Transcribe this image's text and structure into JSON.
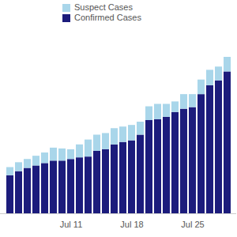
{
  "chart_data": {
    "type": "bar",
    "stacked": true,
    "legend": "top-left",
    "tick_labels": "x",
    "categories": [
      null,
      null,
      null,
      null,
      null,
      null,
      null,
      "Jul 11",
      null,
      null,
      null,
      null,
      null,
      null,
      "Jul 18",
      null,
      null,
      null,
      null,
      null,
      null,
      "Jul 25",
      null,
      null,
      null,
      null
    ],
    "ylim": [
      0,
      230
    ],
    "series": [
      {
        "name": "Suspect Cases",
        "color": "#a9d6ea",
        "values": [
          10,
          11,
          11,
          12,
          13,
          16,
          15,
          12,
          16,
          21,
          20,
          20,
          20,
          19,
          19,
          16,
          17,
          19,
          16,
          13,
          18,
          16,
          18,
          19,
          17,
          18
        ]
      },
      {
        "name": "Confirmed Cases",
        "color": "#1c1c7c",
        "values": [
          47,
          52,
          56,
          59,
          62,
          65,
          65,
          67,
          69,
          70,
          77,
          79,
          85,
          88,
          90,
          97,
          115,
          116,
          119,
          125,
          129,
          131,
          147,
          158,
          164,
          175
        ]
      }
    ]
  }
}
